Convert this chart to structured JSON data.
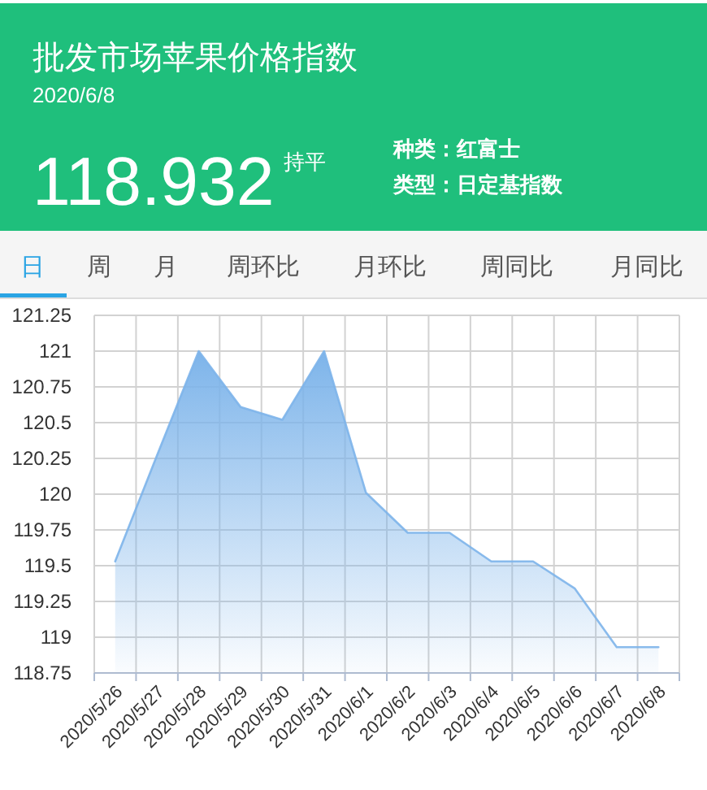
{
  "chart_data": [
    {
      "type": "other",
      "title": "批发市场苹果价格指数",
      "subtitle": "2020/6/8",
      "annotations": [
        "118.932",
        "持平",
        "种类：红富士",
        "类型：日定基指数"
      ]
    },
    {
      "type": "area",
      "annotations": [
        "日",
        "周",
        "月",
        "周环比",
        "月环比",
        "周同比",
        "月同比"
      ],
      "categories": [
        "2020/5/26",
        "2020/5/27",
        "2020/5/28",
        "2020/5/29",
        "2020/5/30",
        "2020/5/31",
        "2020/6/1",
        "2020/6/2",
        "2020/6/3",
        "2020/6/4",
        "2020/6/5",
        "2020/6/6",
        "2020/6/7",
        "2020/6/8"
      ],
      "series": [
        {
          "color": "#7db4ea",
          "values": [
            119.53,
            120.27,
            121,
            120.61,
            120.52,
            121,
            120.01,
            119.73,
            119.73,
            119.53,
            119.53,
            119.34,
            118.93,
            118.93
          ]
        }
      ],
      "ylim": [
        118.75,
        121.25
      ],
      "yticks": [
        118.75,
        119,
        119.25,
        119.5,
        119.75,
        120,
        120.25,
        120.5,
        120.75,
        121,
        121.25
      ],
      "grid": true
    }
  ]
}
